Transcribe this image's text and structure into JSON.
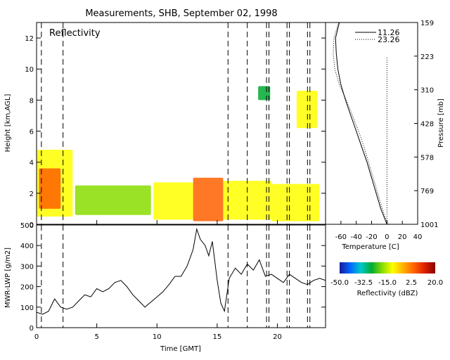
{
  "title": "Measurements, SHB, September 02, 1998",
  "chart_data": [
    {
      "type": "heatmap",
      "panel_label": "Reflectivity",
      "ylabel": "Height [km,AGL]",
      "ylim": [
        0,
        13
      ],
      "xlim": [
        0,
        24
      ],
      "yticks": [
        "0",
        "2",
        "4",
        "6",
        "8",
        "10",
        "12"
      ],
      "dashed_time_markers_gmt": [
        0.4,
        2.2,
        15.9,
        17.5,
        19.1,
        19.3,
        20.8,
        21.0,
        22.5,
        22.7
      ],
      "colorbar": {
        "label": "Reflectivity (dBZ)",
        "range": [
          -50,
          20
        ],
        "tick_labels": [
          "-50.0",
          "-32.5",
          "-15.0",
          "2.5",
          "20.0"
        ],
        "colors": [
          "#1a1a9a",
          "#0066ff",
          "#00c8c8",
          "#00aa33",
          "#88dd00",
          "#ffff00",
          "#ffb000",
          "#ff6000",
          "#dd2000",
          "#880000"
        ]
      },
      "regions": [
        {
          "x0": 0.0,
          "x1": 3.0,
          "y0": 0.5,
          "y1": 4.8,
          "dbz": -10
        },
        {
          "x0": 0.2,
          "x1": 2.0,
          "y0": 1.0,
          "y1": 3.6,
          "dbz": 3
        },
        {
          "x0": 3.2,
          "x1": 9.5,
          "y0": 0.6,
          "y1": 2.5,
          "dbz": -22
        },
        {
          "x0": 9.7,
          "x1": 13.0,
          "y0": 0.3,
          "y1": 2.7,
          "dbz": -12
        },
        {
          "x0": 13.0,
          "x1": 15.5,
          "y0": 0.2,
          "y1": 3.0,
          "dbz": 8
        },
        {
          "x0": 15.5,
          "x1": 19.5,
          "y0": 0.3,
          "y1": 2.8,
          "dbz": -8
        },
        {
          "x0": 19.5,
          "x1": 23.5,
          "y0": 0.2,
          "y1": 2.6,
          "dbz": -12
        },
        {
          "x0": 18.4,
          "x1": 19.4,
          "y0": 8.0,
          "y1": 8.9,
          "dbz": -25
        },
        {
          "x0": 21.6,
          "x1": 23.3,
          "y0": 6.2,
          "y1": 8.6,
          "dbz": -15
        }
      ]
    },
    {
      "type": "line",
      "ylabel": "MWR-LWP [g/m2]",
      "xlabel": "Time [GMT]",
      "xlim": [
        0,
        24
      ],
      "ylim": [
        0,
        500
      ],
      "xticks": [
        "0",
        "5",
        "10",
        "15",
        "20"
      ],
      "yticks": [
        "0",
        "100",
        "200",
        "300",
        "400",
        "500"
      ],
      "x": [
        0,
        0.5,
        1.0,
        1.5,
        2.0,
        2.5,
        3.0,
        3.5,
        4.0,
        4.5,
        5.0,
        5.5,
        6.0,
        6.5,
        7.0,
        7.5,
        8.0,
        8.5,
        9.0,
        9.5,
        10.0,
        10.5,
        11.0,
        11.5,
        12.0,
        12.5,
        13.0,
        13.3,
        13.6,
        14.0,
        14.3,
        14.6,
        15.0,
        15.3,
        15.6,
        16.0,
        16.5,
        17.0,
        17.5,
        18.0,
        18.5,
        19.0,
        19.5,
        20.0,
        20.5,
        21.0,
        21.5,
        22.0,
        22.5,
        23.0,
        23.5,
        24.0
      ],
      "y": [
        75,
        65,
        80,
        140,
        100,
        90,
        100,
        130,
        160,
        150,
        190,
        175,
        190,
        220,
        230,
        200,
        160,
        130,
        100,
        125,
        150,
        175,
        210,
        250,
        250,
        300,
        380,
        480,
        430,
        400,
        350,
        420,
        230,
        120,
        80,
        240,
        290,
        260,
        310,
        280,
        330,
        250,
        260,
        240,
        220,
        260,
        240,
        220,
        210,
        230,
        240,
        230
      ]
    },
    {
      "type": "line",
      "ylabel": "Pressure [mb]",
      "xlabel": "Temperature [C]",
      "xlim": [
        -80,
        40
      ],
      "xticks": [
        "-60",
        "-40",
        "-20",
        "0",
        "20",
        "40"
      ],
      "yticks": [
        "159",
        "223",
        "310",
        "428",
        "578",
        "769",
        "1001"
      ],
      "series": [
        {
          "name": "11.26",
          "style": "solid",
          "height_km": [
            0,
            0.5,
            1,
            2,
            3,
            4,
            5,
            6,
            7,
            8,
            9,
            10,
            11,
            12,
            13
          ],
          "temperature_c": [
            0,
            -4,
            -8,
            -14,
            -20,
            -26,
            -33,
            -40,
            -47,
            -54,
            -60,
            -64,
            -66,
            -67,
            -62
          ]
        },
        {
          "name": "23.26",
          "style": "dotted",
          "height_km": [
            0,
            0.5,
            1,
            2,
            3,
            4,
            5,
            6,
            7,
            8,
            9,
            10,
            11,
            12,
            13
          ],
          "temperature_c": [
            2,
            -3,
            -6,
            -12,
            -18,
            -24,
            -30,
            -37,
            -45,
            -53,
            -62,
            -68,
            -70,
            -69,
            -63
          ]
        }
      ],
      "reference_line_temperature_c": 0
    }
  ]
}
